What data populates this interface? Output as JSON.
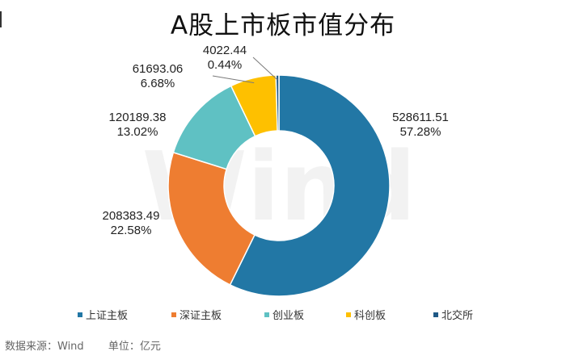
{
  "chart_data": {
    "type": "donut",
    "title": "A股上市板市值分布",
    "series": [
      {
        "name": "上证主板",
        "value": 528611.51,
        "percent": "57.28%",
        "color": "#2277a5"
      },
      {
        "name": "深证主板",
        "value": 208383.49,
        "percent": "22.58%",
        "color": "#ee7d31"
      },
      {
        "name": "创业板",
        "value": 120189.38,
        "percent": "13.02%",
        "color": "#5fc1c3"
      },
      {
        "name": "科创板",
        "value": 61693.06,
        "percent": "6.68%",
        "color": "#fec000"
      },
      {
        "name": "北交所",
        "value": 4022.44,
        "percent": "0.44%",
        "color": "#1f5986"
      }
    ],
    "value_labels": [
      "528611.51",
      "208383.49",
      "120189.38",
      "61693.06",
      "4022.44"
    ],
    "legend_position": "bottom"
  },
  "watermark": "Wind",
  "footer": {
    "source": "数据来源：Wind",
    "unit": "单位：亿元"
  }
}
